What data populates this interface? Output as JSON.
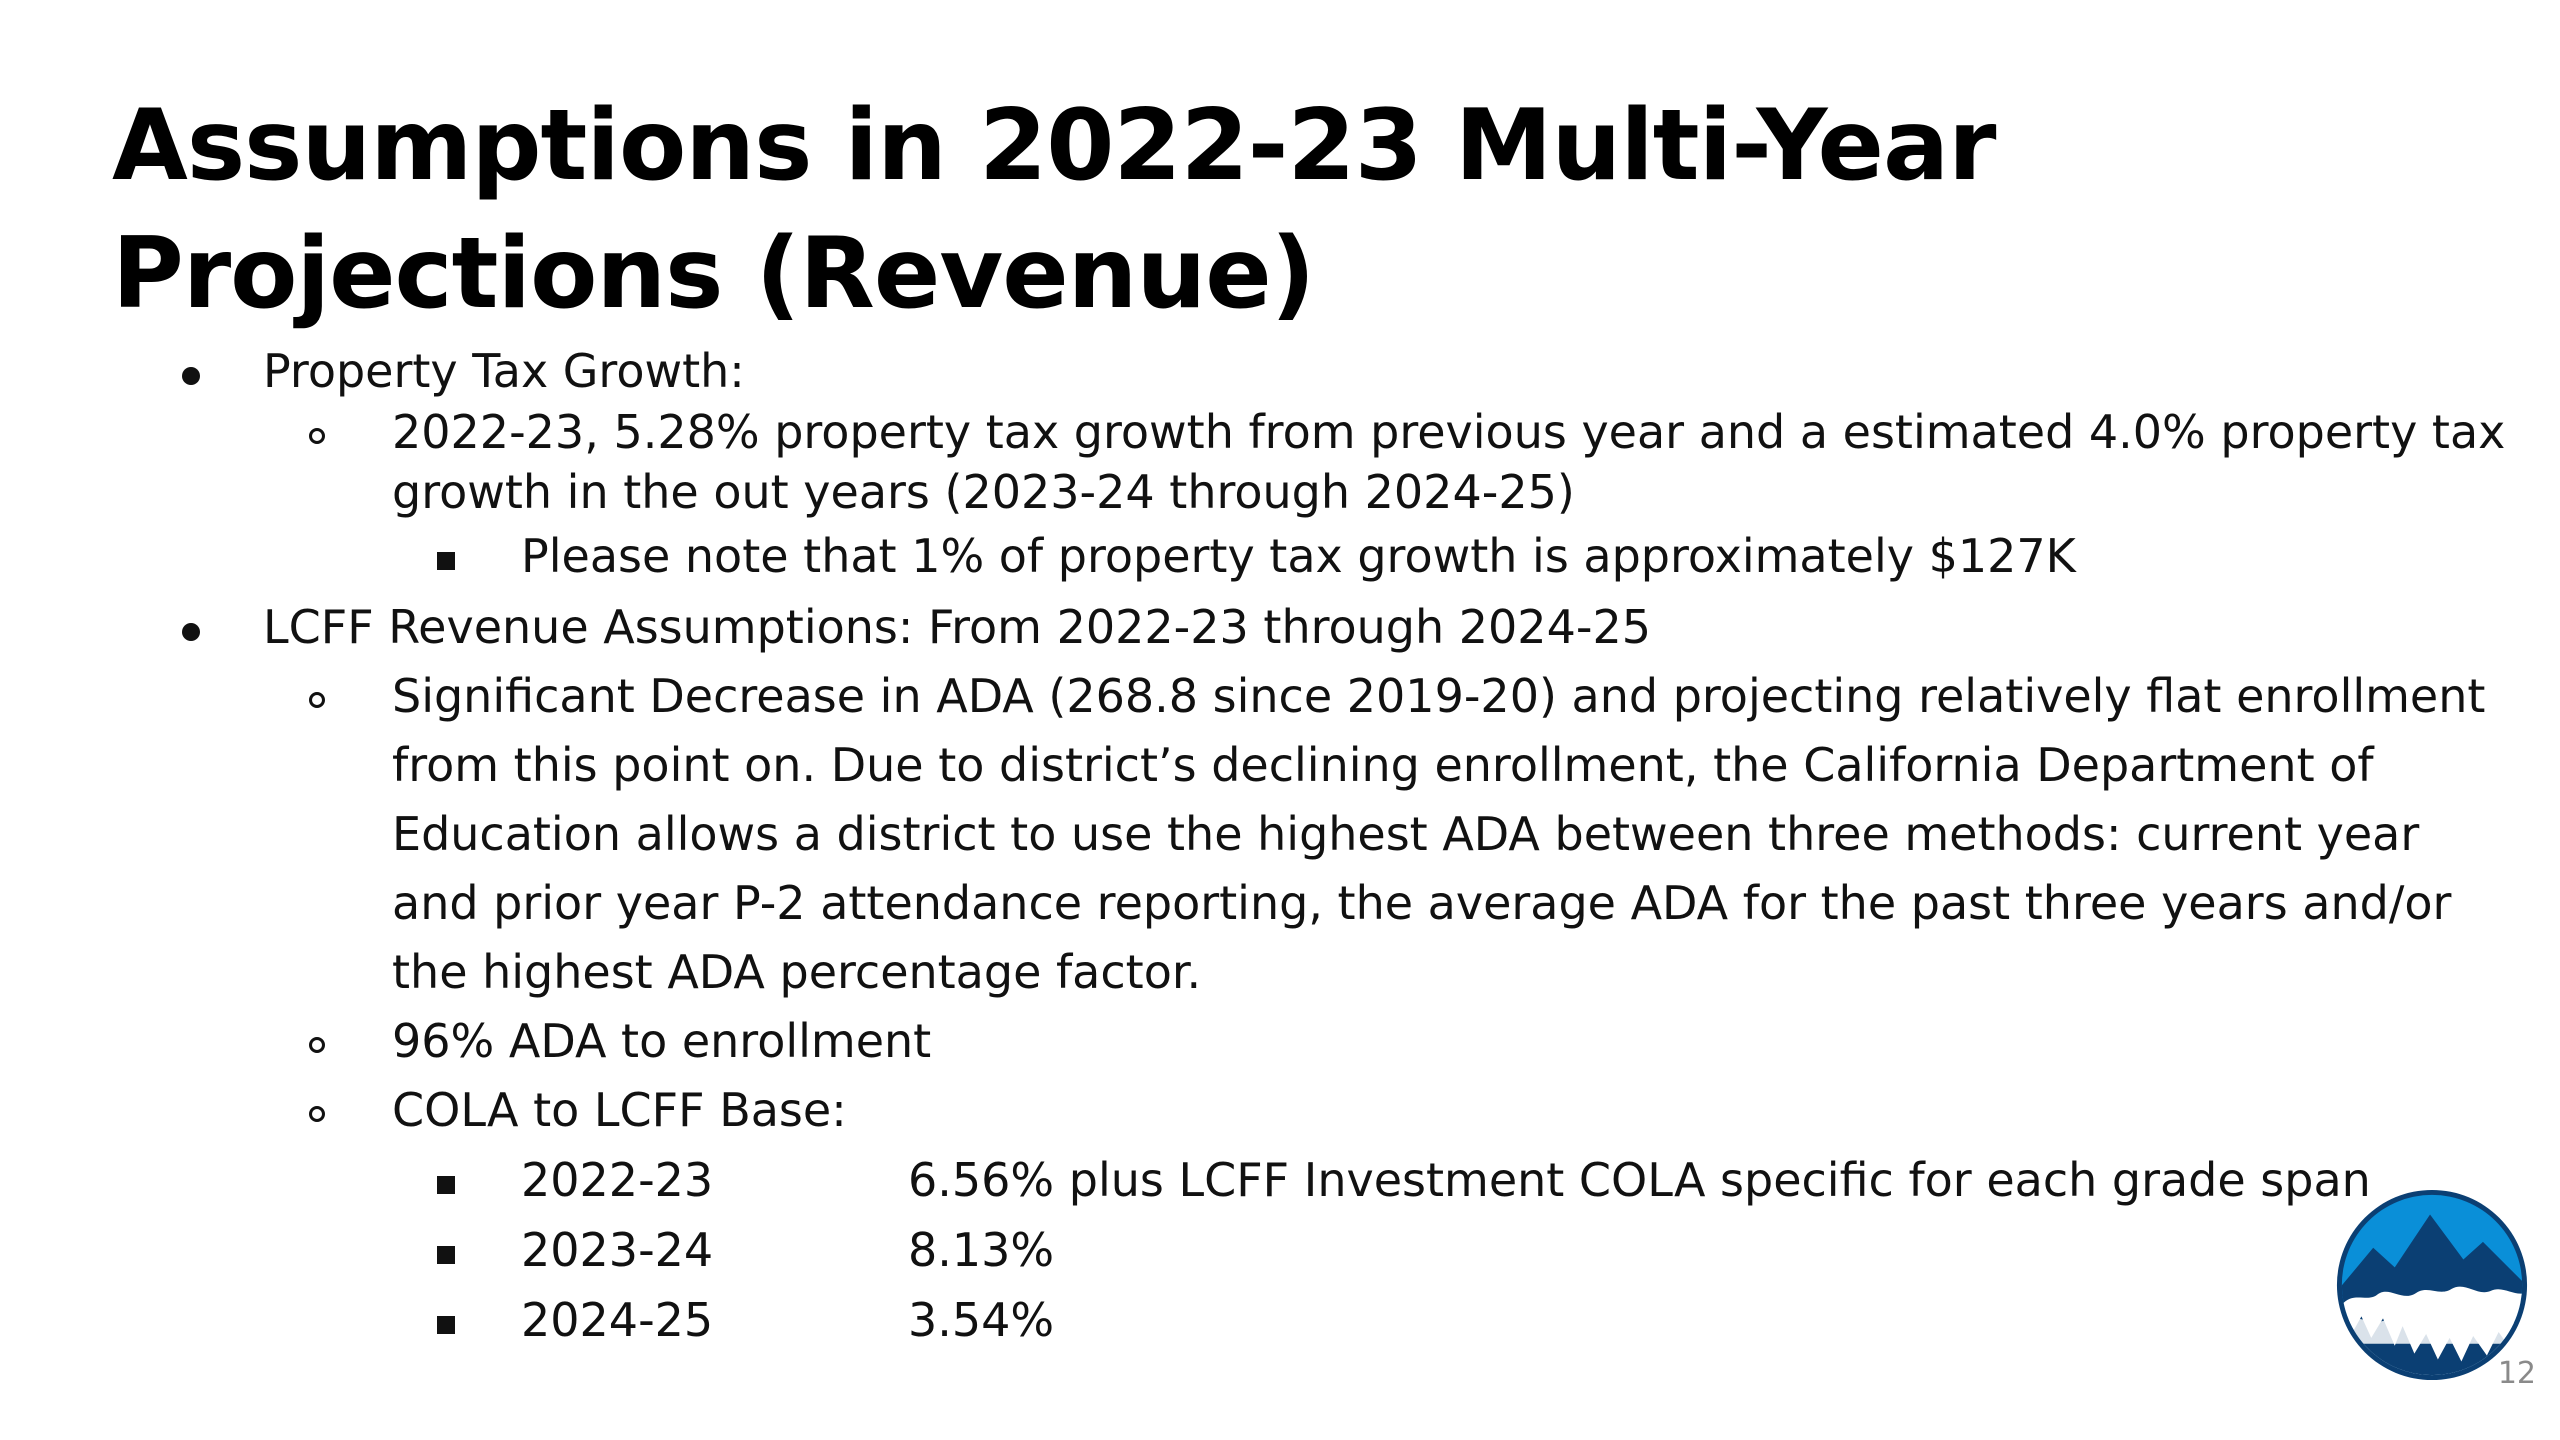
{
  "slide": {
    "title": "Assumptions in 2022-23 Multi-Year Projections (Revenue)",
    "page_number": "12",
    "logo_icon": "mountain-logo-icon",
    "colors": {
      "logo_sky": "#0a8fd8",
      "logo_mountain": "#0b3f73",
      "logo_snow": "#ffffff",
      "text": "#111111",
      "page_number": "#8a8a8a"
    }
  },
  "bullets": {
    "property_tax": {
      "label": "Property Tax Growth:",
      "sub1_line1": "2022-23, 5.28% property tax growth from previous year and a estimated 4.0% property tax",
      "sub1_line2": "growth in the out years (2023-24 through 2024-25)",
      "sub1_note": "Please note that 1% of property tax growth is approximately $127K"
    },
    "lcff": {
      "label": "LCFF Revenue Assumptions: From 2022-23 through 2024-25",
      "ada_lines": [
        "Significant Decrease in ADA (268.8 since 2019-20) and projecting relatively flat enrollment",
        "from this point on. Due to district’s declining enrollment, the California Department of",
        "Education allows a district to use the highest ADA between three methods: current year",
        "and prior year P-2 attendance reporting, the average ADA for the past three years and/or",
        "the highest ADA percentage factor."
      ],
      "ada_enrollment": "96% ADA to enrollment",
      "cola_label": "COLA to LCFF Base:",
      "cola_rows": [
        {
          "year": "2022-23",
          "value": "6.56% plus LCFF Investment COLA specific for each grade span"
        },
        {
          "year": "2023-24",
          "value": "8.13%"
        },
        {
          "year": "2024-25",
          "value": "3.54%"
        }
      ]
    }
  }
}
